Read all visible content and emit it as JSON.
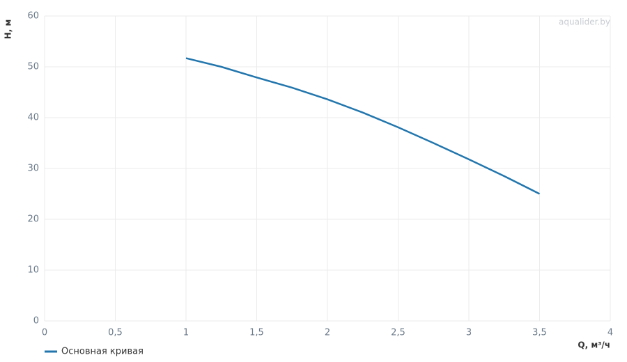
{
  "chart_data": {
    "type": "line",
    "watermark": "aqualider.by",
    "x_label": "Q, м³/ч",
    "y_label": "H, м",
    "x": [
      1,
      1.25,
      1.5,
      1.75,
      2,
      2.25,
      2.5,
      2.75,
      3,
      3.25,
      3.5
    ],
    "series": [
      {
        "name": "Основная кривая",
        "color": "#2276ad",
        "values": [
          51.7,
          50,
          47.9,
          45.9,
          43.6,
          41,
          38.1,
          35,
          31.8,
          28.5,
          25
        ]
      }
    ],
    "xlim": [
      0,
      4
    ],
    "xticks": [
      0,
      {
        "value": 0.5,
        "label": "0,5"
      },
      1,
      {
        "value": 1.5,
        "label": "1,5"
      },
      2,
      {
        "value": 2.5,
        "label": "2,5"
      },
      3,
      {
        "value": 3.5,
        "label": "3,5"
      },
      4
    ],
    "ylim": [
      0,
      60
    ],
    "yticks": [
      0,
      10,
      20,
      30,
      40,
      50,
      60
    ],
    "grid": true,
    "legend": "bottom-left"
  }
}
